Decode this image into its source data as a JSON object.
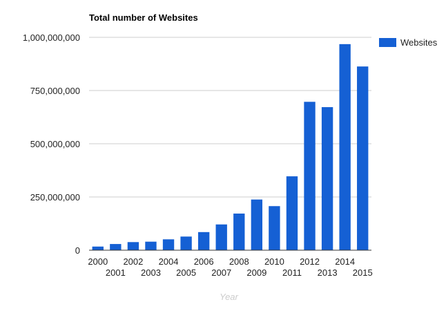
{
  "chart_data": {
    "type": "bar",
    "title": "Total number of Websites",
    "xlabel": "Year",
    "ylabel": "",
    "ylim": [
      0,
      1000000000
    ],
    "y_ticks": [
      0,
      250000000,
      500000000,
      750000000,
      1000000000
    ],
    "y_tick_labels": [
      "0",
      "250,000,000",
      "500,000,000",
      "750,000,000",
      "1,000,000,000"
    ],
    "categories": [
      "2000",
      "2001",
      "2002",
      "2003",
      "2004",
      "2005",
      "2006",
      "2007",
      "2008",
      "2009",
      "2010",
      "2011",
      "2012",
      "2013",
      "2014",
      "2015"
    ],
    "series": [
      {
        "name": "Websites",
        "color": "#1560d4",
        "values": [
          17000000,
          29000000,
          38000000,
          40000000,
          51000000,
          64000000,
          85000000,
          121000000,
          172000000,
          238000000,
          207000000,
          347000000,
          697000000,
          672000000,
          968000000,
          863000000
        ]
      }
    ],
    "grid": true,
    "legend_position": "right"
  }
}
